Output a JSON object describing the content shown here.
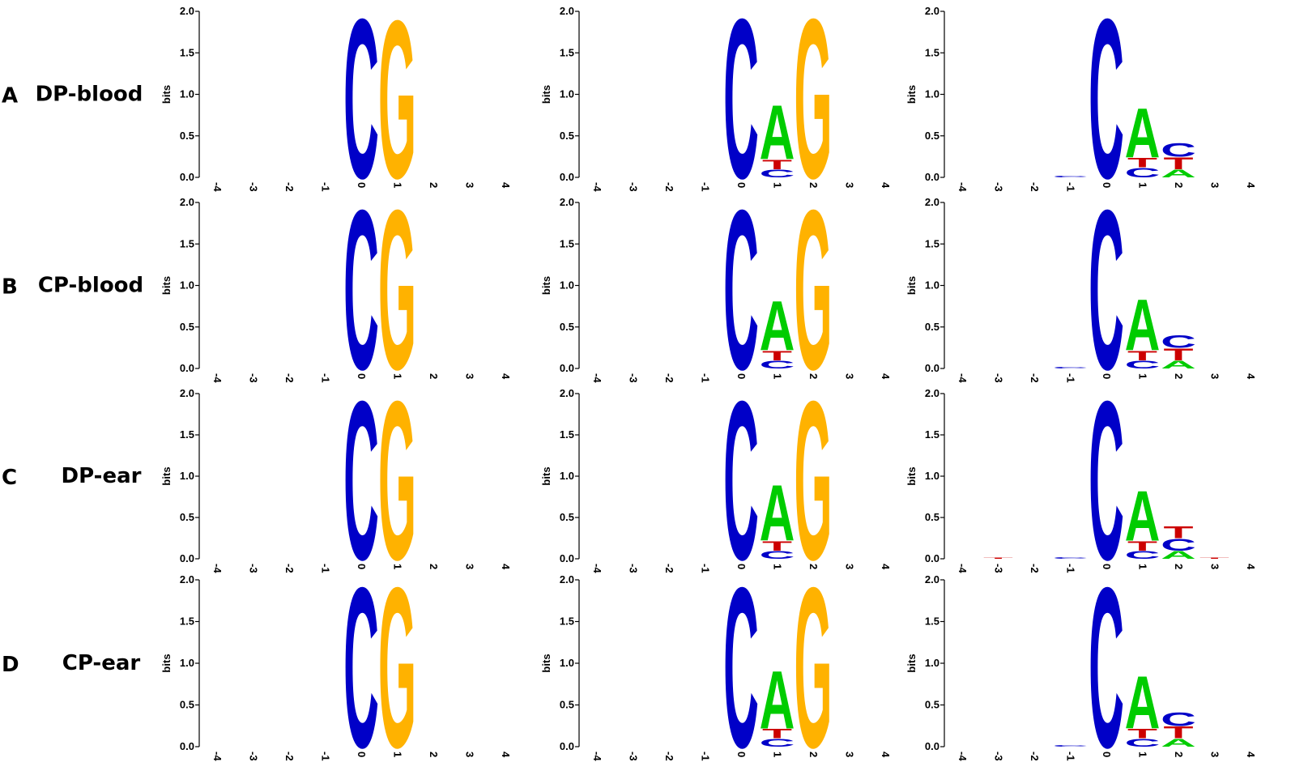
{
  "rows": [
    {
      "letter": "A",
      "label": "DP-blood"
    },
    {
      "letter": "B",
      "label": "CP-blood"
    },
    {
      "letter": "C",
      "label": "DP-ear"
    },
    {
      "letter": "D",
      "label": "CP-ear"
    }
  ],
  "chart_data": [
    {
      "type": "logo",
      "ylabel": "bits",
      "x": [
        -4,
        -3,
        -2,
        -1,
        0,
        1,
        2,
        3,
        4
      ],
      "xticks": [
        -4,
        -3,
        -2,
        -1,
        0,
        1,
        2,
        3,
        4
      ],
      "ylim": [
        0,
        2
      ],
      "yticks": [
        {
          "value": 0,
          "label": "0.0"
        },
        {
          "value": 0.5,
          "label": "0.5"
        },
        {
          "value": 1,
          "label": "1.0"
        },
        {
          "value": 1.5,
          "label": "1.5"
        },
        {
          "value": 2,
          "label": "2.0"
        }
      ],
      "series": [
        {
          "name": "C",
          "color": "#0000c8",
          "values": [
            0,
            0,
            0,
            0,
            2,
            0,
            0,
            0,
            0
          ]
        },
        {
          "name": "G",
          "color": "#ffb200",
          "values": [
            0,
            0,
            0,
            0,
            0,
            1.98,
            0,
            0,
            0
          ]
        }
      ]
    },
    {
      "type": "logo",
      "ylabel": "bits",
      "x": [
        -4,
        -3,
        -2,
        -1,
        0,
        1,
        2,
        3,
        4
      ],
      "xticks": [
        -4,
        -3,
        -2,
        -1,
        0,
        1,
        2,
        3,
        4
      ],
      "ylim": [
        0,
        2
      ],
      "yticks": [
        {
          "value": 0,
          "label": "0.0"
        },
        {
          "value": 0.5,
          "label": "0.5"
        },
        {
          "value": 1,
          "label": "1.0"
        },
        {
          "value": 1.5,
          "label": "1.5"
        },
        {
          "value": 2,
          "label": "2.0"
        }
      ],
      "series": [
        {
          "name": "C",
          "color": "#0000c8",
          "values": [
            0,
            0,
            0,
            0,
            2,
            0.1,
            0,
            0,
            0
          ]
        },
        {
          "name": "T",
          "color": "#cc0000",
          "values": [
            0,
            0,
            0,
            0,
            0,
            0.12,
            0,
            0,
            0
          ]
        },
        {
          "name": "A",
          "color": "#00cc00",
          "values": [
            0,
            0,
            0,
            0,
            0,
            0.68,
            0,
            0,
            0
          ]
        },
        {
          "name": "G",
          "color": "#ffb200",
          "values": [
            0,
            0,
            0,
            0,
            0,
            0,
            2,
            0,
            0
          ]
        }
      ]
    },
    {
      "type": "logo",
      "ylabel": "bits",
      "x": [
        -4,
        -3,
        -2,
        -1,
        0,
        1,
        2,
        3,
        4
      ],
      "xticks": [
        -4,
        -3,
        -2,
        -1,
        0,
        1,
        2,
        3,
        4
      ],
      "ylim": [
        0,
        2
      ],
      "yticks": [
        {
          "value": 0,
          "label": "0.0"
        },
        {
          "value": 0.5,
          "label": "0.5"
        },
        {
          "value": 1,
          "label": "1.0"
        },
        {
          "value": 1.5,
          "label": "1.5"
        },
        {
          "value": 2,
          "label": "2.0"
        }
      ],
      "series": [
        {
          "name": "C",
          "color": "#0000c8",
          "values": [
            0,
            0,
            0,
            0.02,
            2,
            0.12,
            0.17,
            0,
            0
          ]
        },
        {
          "name": "T",
          "color": "#cc0000",
          "values": [
            0,
            0,
            0,
            0,
            0,
            0.12,
            0.15,
            0,
            0
          ]
        },
        {
          "name": "A",
          "color": "#00cc00",
          "values": [
            0,
            0,
            0,
            0,
            0,
            0.62,
            0.1,
            0,
            0
          ]
        }
      ]
    },
    {
      "type": "logo",
      "ylabel": "bits",
      "x": [
        -4,
        -3,
        -2,
        -1,
        0,
        1,
        2,
        3,
        4
      ],
      "xticks": [
        -4,
        -3,
        -2,
        -1,
        0,
        1,
        2,
        3,
        4
      ],
      "ylim": [
        0,
        2
      ],
      "yticks": [
        {
          "value": 0,
          "label": "0.0"
        },
        {
          "value": 0.5,
          "label": "0.5"
        },
        {
          "value": 1,
          "label": "1.0"
        },
        {
          "value": 1.5,
          "label": "1.5"
        },
        {
          "value": 2,
          "label": "2.0"
        }
      ],
      "series": [
        {
          "name": "C",
          "color": "#0000c8",
          "values": [
            0,
            0,
            0,
            0,
            2,
            0,
            0,
            0,
            0
          ]
        },
        {
          "name": "G",
          "color": "#ffb200",
          "values": [
            0,
            0,
            0,
            0,
            0,
            2,
            0,
            0,
            0
          ]
        }
      ]
    },
    {
      "type": "logo",
      "ylabel": "bits",
      "x": [
        -4,
        -3,
        -2,
        -1,
        0,
        1,
        2,
        3,
        4
      ],
      "xticks": [
        -4,
        -3,
        -2,
        -1,
        0,
        1,
        2,
        3,
        4
      ],
      "ylim": [
        0,
        2
      ],
      "yticks": [
        {
          "value": 0,
          "label": "0.0"
        },
        {
          "value": 0.5,
          "label": "0.5"
        },
        {
          "value": 1,
          "label": "1.0"
        },
        {
          "value": 1.5,
          "label": "1.5"
        },
        {
          "value": 2,
          "label": "2.0"
        }
      ],
      "series": [
        {
          "name": "C",
          "color": "#0000c8",
          "values": [
            0,
            0,
            0,
            0,
            2,
            0.1,
            0,
            0,
            0
          ]
        },
        {
          "name": "T",
          "color": "#cc0000",
          "values": [
            0,
            0,
            0,
            0,
            0,
            0.12,
            0,
            0,
            0
          ]
        },
        {
          "name": "A",
          "color": "#00cc00",
          "values": [
            0,
            0,
            0,
            0,
            0,
            0.62,
            0,
            0,
            0
          ]
        },
        {
          "name": "G",
          "color": "#ffb200",
          "values": [
            0,
            0,
            0,
            0,
            0,
            0,
            2,
            0,
            0
          ]
        }
      ]
    },
    {
      "type": "logo",
      "ylabel": "bits",
      "x": [
        -4,
        -3,
        -2,
        -1,
        0,
        1,
        2,
        3,
        4
      ],
      "xticks": [
        -4,
        -3,
        -2,
        -1,
        0,
        1,
        2,
        3,
        4
      ],
      "ylim": [
        0,
        2
      ],
      "yticks": [
        {
          "value": 0,
          "label": "0.0"
        },
        {
          "value": 0.5,
          "label": "0.5"
        },
        {
          "value": 1,
          "label": "1.0"
        },
        {
          "value": 1.5,
          "label": "1.5"
        },
        {
          "value": 2,
          "label": "2.0"
        }
      ],
      "series": [
        {
          "name": "C",
          "color": "#0000c8",
          "values": [
            0,
            0,
            0,
            0.02,
            2,
            0.1,
            0.16,
            0,
            0
          ]
        },
        {
          "name": "T",
          "color": "#cc0000",
          "values": [
            0,
            0,
            0,
            0,
            0,
            0.12,
            0.15,
            0,
            0
          ]
        },
        {
          "name": "A",
          "color": "#00cc00",
          "values": [
            0,
            0,
            0,
            0,
            0,
            0.64,
            0.1,
            0,
            0
          ]
        }
      ]
    },
    {
      "type": "logo",
      "ylabel": "bits",
      "x": [
        -4,
        -3,
        -2,
        -1,
        0,
        1,
        2,
        3,
        4
      ],
      "xticks": [
        -4,
        -3,
        -2,
        -1,
        0,
        1,
        2,
        3,
        4
      ],
      "ylim": [
        0,
        2
      ],
      "yticks": [
        {
          "value": 0,
          "label": "0.0"
        },
        {
          "value": 0.5,
          "label": "0.5"
        },
        {
          "value": 1,
          "label": "1.0"
        },
        {
          "value": 1.5,
          "label": "1.5"
        },
        {
          "value": 2,
          "label": "2.0"
        }
      ],
      "series": [
        {
          "name": "C",
          "color": "#0000c8",
          "values": [
            0,
            0,
            0,
            0,
            2,
            0,
            0,
            0,
            0
          ]
        },
        {
          "name": "G",
          "color": "#ffb200",
          "values": [
            0,
            0,
            0,
            0,
            0,
            2,
            0,
            0,
            0
          ]
        }
      ]
    },
    {
      "type": "logo",
      "ylabel": "bits",
      "x": [
        -4,
        -3,
        -2,
        -1,
        0,
        1,
        2,
        3,
        4
      ],
      "xticks": [
        -4,
        -3,
        -2,
        -1,
        0,
        1,
        2,
        3,
        4
      ],
      "ylim": [
        0,
        2
      ],
      "yticks": [
        {
          "value": 0,
          "label": "0.0"
        },
        {
          "value": 0.5,
          "label": "0.5"
        },
        {
          "value": 1,
          "label": "1.0"
        },
        {
          "value": 1.5,
          "label": "1.5"
        },
        {
          "value": 2,
          "label": "2.0"
        }
      ],
      "series": [
        {
          "name": "C",
          "color": "#0000c8",
          "values": [
            0,
            0,
            0,
            0,
            2,
            0.1,
            0,
            0,
            0
          ]
        },
        {
          "name": "T",
          "color": "#cc0000",
          "values": [
            0,
            0,
            0,
            0,
            0,
            0.12,
            0,
            0,
            0
          ]
        },
        {
          "name": "A",
          "color": "#00cc00",
          "values": [
            0,
            0,
            0,
            0,
            0,
            0.7,
            0,
            0,
            0
          ]
        },
        {
          "name": "G",
          "color": "#ffb200",
          "values": [
            0,
            0,
            0,
            0,
            0,
            0,
            2,
            0,
            0
          ]
        }
      ]
    },
    {
      "type": "logo",
      "ylabel": "bits",
      "x": [
        -4,
        -3,
        -2,
        -1,
        0,
        1,
        2,
        3,
        4
      ],
      "xticks": [
        -4,
        -3,
        -2,
        -1,
        0,
        1,
        2,
        3,
        4
      ],
      "ylim": [
        0,
        2
      ],
      "yticks": [
        {
          "value": 0,
          "label": "0.0"
        },
        {
          "value": 0.5,
          "label": "0.5"
        },
        {
          "value": 1,
          "label": "1.0"
        },
        {
          "value": 1.5,
          "label": "1.5"
        },
        {
          "value": 2,
          "label": "2.0"
        }
      ],
      "series": [
        {
          "name": "C",
          "color": "#0000c8",
          "values": [
            0,
            0,
            0,
            0.02,
            2,
            0.1,
            0.15,
            0,
            0
          ]
        },
        {
          "name": "T",
          "color": "#cc0000",
          "values": [
            0,
            0.01,
            0,
            0,
            0,
            0.12,
            0.15,
            0.01,
            0
          ]
        },
        {
          "name": "A",
          "color": "#00cc00",
          "values": [
            0,
            0,
            0,
            0,
            0,
            0.63,
            0.1,
            0,
            0
          ]
        }
      ]
    },
    {
      "type": "logo",
      "ylabel": "bits",
      "x": [
        -4,
        -3,
        -2,
        -1,
        0,
        1,
        2,
        3,
        4
      ],
      "xticks": [
        -4,
        -3,
        -2,
        -1,
        0,
        1,
        2,
        3,
        4
      ],
      "ylim": [
        0,
        2
      ],
      "yticks": [
        {
          "value": 0,
          "label": "0.0"
        },
        {
          "value": 0.5,
          "label": "0.5"
        },
        {
          "value": 1,
          "label": "1.0"
        },
        {
          "value": 1.5,
          "label": "1.5"
        },
        {
          "value": 2,
          "label": "2.0"
        }
      ],
      "series": [
        {
          "name": "C",
          "color": "#0000c8",
          "values": [
            0,
            0,
            0,
            0,
            2,
            0,
            0,
            0,
            0
          ]
        },
        {
          "name": "G",
          "color": "#ffb200",
          "values": [
            0,
            0,
            0,
            0,
            0,
            2,
            0,
            0,
            0
          ]
        }
      ]
    },
    {
      "type": "logo",
      "ylabel": "bits",
      "x": [
        -4,
        -3,
        -2,
        -1,
        0,
        1,
        2,
        3,
        4
      ],
      "xticks": [
        -4,
        -3,
        -2,
        -1,
        0,
        1,
        2,
        3,
        4
      ],
      "ylim": [
        0,
        2
      ],
      "yticks": [
        {
          "value": 0,
          "label": "0.0"
        },
        {
          "value": 0.5,
          "label": "0.5"
        },
        {
          "value": 1,
          "label": "1.0"
        },
        {
          "value": 1.5,
          "label": "1.5"
        },
        {
          "value": 2,
          "label": "2.0"
        }
      ],
      "series": [
        {
          "name": "C",
          "color": "#0000c8",
          "values": [
            0,
            0,
            0,
            0,
            2,
            0.1,
            0,
            0,
            0
          ]
        },
        {
          "name": "T",
          "color": "#cc0000",
          "values": [
            0,
            0,
            0,
            0,
            0,
            0.12,
            0,
            0,
            0
          ]
        },
        {
          "name": "A",
          "color": "#00cc00",
          "values": [
            0,
            0,
            0,
            0,
            0,
            0.72,
            0,
            0,
            0
          ]
        },
        {
          "name": "G",
          "color": "#ffb200",
          "values": [
            0,
            0,
            0,
            0,
            0,
            0,
            2,
            0,
            0
          ]
        }
      ]
    },
    {
      "type": "logo",
      "ylabel": "bits",
      "x": [
        -4,
        -3,
        -2,
        -1,
        0,
        1,
        2,
        3,
        4
      ],
      "xticks": [
        -4,
        -3,
        -2,
        -1,
        0,
        1,
        2,
        3,
        4
      ],
      "ylim": [
        0,
        2
      ],
      "yticks": [
        {
          "value": 0,
          "label": "0.0"
        },
        {
          "value": 0.5,
          "label": "0.5"
        },
        {
          "value": 1,
          "label": "1.0"
        },
        {
          "value": 1.5,
          "label": "1.5"
        },
        {
          "value": 2,
          "label": "2.0"
        }
      ],
      "series": [
        {
          "name": "C",
          "color": "#0000c8",
          "values": [
            0,
            0,
            0,
            0.02,
            2,
            0.1,
            0.17,
            0,
            0
          ]
        },
        {
          "name": "T",
          "color": "#cc0000",
          "values": [
            0,
            0,
            0,
            0,
            0,
            0.12,
            0.15,
            0,
            0
          ]
        },
        {
          "name": "A",
          "color": "#00cc00",
          "values": [
            0,
            0,
            0,
            0,
            0,
            0.66,
            0.1,
            0,
            0
          ]
        }
      ]
    }
  ]
}
